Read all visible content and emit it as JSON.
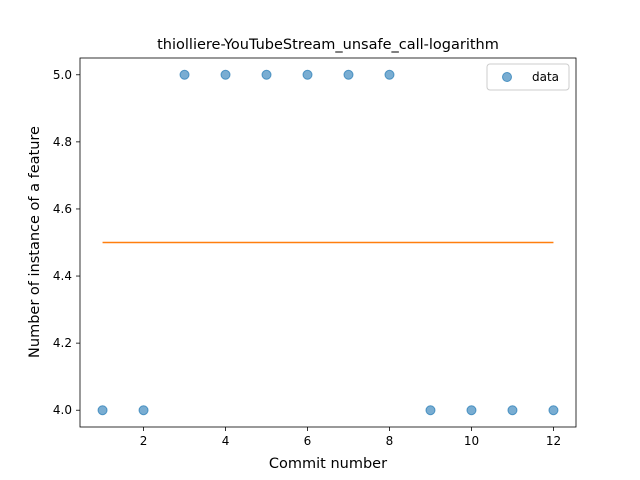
{
  "chart_data": {
    "type": "scatter",
    "title": "thiolliere-YouTubeStream_unsafe_call-logarithm",
    "xlabel": "Commit number",
    "ylabel": "Number of instance of a feature",
    "xlim": [
      0.45,
      12.55
    ],
    "ylim": [
      3.95,
      5.05
    ],
    "xticks": [
      2,
      4,
      6,
      8,
      10,
      12
    ],
    "yticks": [
      4.0,
      4.2,
      4.4,
      4.6,
      4.8,
      5.0
    ],
    "ytick_labels": [
      "4.0",
      "4.2",
      "4.4",
      "4.6",
      "4.8",
      "5.0"
    ],
    "grid": false,
    "legend_position": "upper right",
    "series": [
      {
        "name": "data",
        "kind": "scatter",
        "color": "#1f77b4",
        "x": [
          1,
          2,
          3,
          4,
          5,
          6,
          7,
          8,
          9,
          10,
          11,
          12
        ],
        "y": [
          4,
          4,
          5,
          5,
          5,
          5,
          5,
          5,
          4,
          4,
          4,
          4
        ]
      },
      {
        "kind": "line",
        "color": "#ff7f0e",
        "x": [
          1,
          12
        ],
        "y": [
          4.5,
          4.5
        ]
      }
    ]
  }
}
